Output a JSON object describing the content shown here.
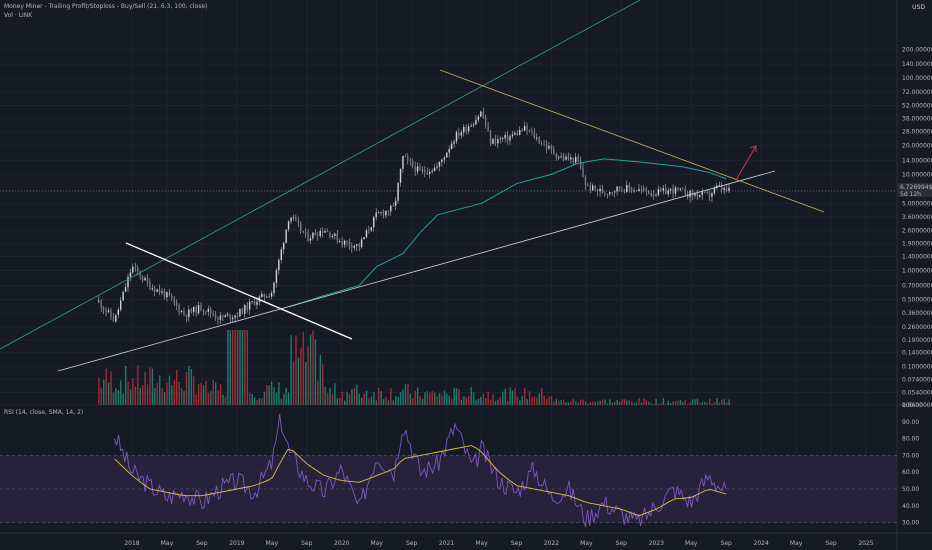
{
  "header": {
    "indicator_title": "Money Miner - Trailing Profit/Stoploss - Buy/Sell (21, 6.3, 100, close)",
    "volume_title": "Vol · LINK",
    "currency": "USD",
    "rsi_title": "RSI (14, close, SMA, 14, 2)"
  },
  "price_tag": {
    "value": "6.726994$",
    "countdown": "5d 12h"
  },
  "colors": {
    "background": "#161a25",
    "grid": "#1f2330",
    "candle_up": "#d1d4dc",
    "candle_down": "#d1d4dc",
    "volume_up": "#1f8f7a",
    "volume_down": "#b3313a",
    "ma_line": "#1aa69a",
    "upper_channel": "#2ea87a",
    "lower_channel": "#d1d4dc",
    "down_trendline": "#c9b45a",
    "white_trendline": "#ffffff",
    "arrow": "#e0405a",
    "rsi_line": "#7e57c2",
    "rsi_ma": "#d9c341",
    "rsi_band": "#2a2540"
  },
  "chart_data": [
    {
      "type": "line",
      "name_ref": "price",
      "y_scale": "log",
      "ylim": [
        0.04,
        550
      ],
      "x": [
        "2017-09",
        "2017-11",
        "2018-01",
        "2018-03",
        "2018-05",
        "2018-07",
        "2018-09",
        "2018-11",
        "2019-01",
        "2019-03",
        "2019-05",
        "2019-06",
        "2019-07",
        "2019-09",
        "2019-11",
        "2020-01",
        "2020-03",
        "2020-05",
        "2020-07",
        "2020-08",
        "2020-10",
        "2020-12",
        "2021-02",
        "2021-04",
        "2021-05",
        "2021-06",
        "2021-08",
        "2021-10",
        "2021-12",
        "2022-02",
        "2022-04",
        "2022-05",
        "2022-07",
        "2022-09",
        "2022-11",
        "2023-01",
        "2023-03",
        "2023-05",
        "2023-07",
        "2023-08",
        "2023-09"
      ],
      "series": [
        {
          "values": [
            0.5,
            0.3,
            1.1,
            0.7,
            0.55,
            0.35,
            0.42,
            0.32,
            0.35,
            0.48,
            0.6,
            1.5,
            3.8,
            2.2,
            2.7,
            2.0,
            1.8,
            3.8,
            4.5,
            15.0,
            10.5,
            12.0,
            25.0,
            35.0,
            45.0,
            22.0,
            24.0,
            30.0,
            21.0,
            15.0,
            14.0,
            7.5,
            6.5,
            7.3,
            6.9,
            6.4,
            6.9,
            6.2,
            6.0,
            7.4,
            6.73
          ]
        }
      ],
      "axis_ticks": [
        "200.0000000",
        "140.0000000",
        "100.0000000",
        "72.0000000",
        "52.0000000",
        "38.0000000",
        "28.0000000",
        "20.0000000",
        "14.0000000",
        "10.0000000",
        "6.7269948",
        "5.0000000",
        "3.6000000",
        "2.6000000",
        "1.9000000",
        "1.4000000",
        "1.0000000",
        "0.7000000",
        "0.5000000",
        "0.3600000",
        "0.2600000",
        "0.1900000",
        "0.1400000",
        "0.1000000",
        "0.0740000",
        "0.0540000",
        "0.0400000"
      ],
      "x_ticks": [
        "2018",
        "May",
        "Sep",
        "2019",
        "May",
        "Sep",
        "2020",
        "May",
        "Sep",
        "2021",
        "May",
        "Sep",
        "2022",
        "May",
        "Sep",
        "2023",
        "May",
        "Sep",
        "2024",
        "May",
        "Sep",
        "2025"
      ],
      "grid": true
    },
    {
      "type": "line",
      "name_ref": "rsi",
      "ylim": [
        25,
        100
      ],
      "axis_ticks": [
        "100.00",
        "90.00",
        "80.00",
        "70.00",
        "60.00",
        "50.00",
        "40.00",
        "30.00"
      ],
      "x": [
        "2017-11",
        "2018-01",
        "2018-03",
        "2018-05",
        "2018-07",
        "2018-09",
        "2018-11",
        "2019-01",
        "2019-03",
        "2019-05",
        "2019-06",
        "2019-07",
        "2019-09",
        "2019-11",
        "2020-01",
        "2020-03",
        "2020-05",
        "2020-07",
        "2020-08",
        "2020-10",
        "2020-12",
        "2021-02",
        "2021-04",
        "2021-05",
        "2021-07",
        "2021-09",
        "2021-11",
        "2022-01",
        "2022-03",
        "2022-05",
        "2022-07",
        "2022-09",
        "2022-11",
        "2023-01",
        "2023-03",
        "2023-05",
        "2023-07",
        "2023-09"
      ],
      "series": [
        {
          "values": [
            82,
            60,
            52,
            45,
            48,
            42,
            50,
            55,
            48,
            65,
            92,
            72,
            55,
            48,
            62,
            38,
            70,
            60,
            90,
            60,
            65,
            88,
            62,
            74,
            55,
            48,
            62,
            45,
            50,
            32,
            42,
            35,
            30,
            40,
            50,
            42,
            58,
            48
          ]
        },
        {
          "values": [
            68,
            58,
            50,
            48,
            46,
            46,
            48,
            50,
            52,
            56,
            66,
            75,
            65,
            58,
            55,
            54,
            58,
            62,
            68,
            70,
            72,
            74,
            76,
            72,
            60,
            52,
            50,
            48,
            46,
            42,
            40,
            38,
            34,
            38,
            44,
            45,
            50,
            47
          ]
        }
      ],
      "band": [
        30,
        70
      ]
    }
  ]
}
